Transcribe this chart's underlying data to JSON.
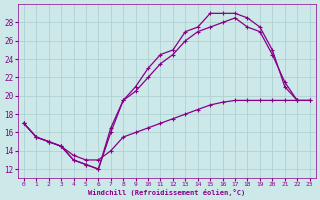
{
  "xlabel": "Windchill (Refroidissement éolien,°C)",
  "bg_color": "#cce8e8",
  "grid_color": "#aacece",
  "line_color": "#880088",
  "xlim": [
    -0.5,
    23.5
  ],
  "ylim": [
    11.0,
    30.0
  ],
  "yticks": [
    12,
    14,
    16,
    18,
    20,
    22,
    24,
    26,
    28
  ],
  "xticks": [
    0,
    1,
    2,
    3,
    4,
    5,
    6,
    7,
    8,
    9,
    10,
    11,
    12,
    13,
    14,
    15,
    16,
    17,
    18,
    19,
    20,
    21,
    22,
    23
  ],
  "curve1_x": [
    0,
    1,
    2,
    3,
    4,
    5,
    6,
    7,
    8,
    9,
    10,
    11,
    12,
    13,
    14,
    15,
    16,
    17,
    18,
    19,
    20,
    21,
    22
  ],
  "curve1_y": [
    17.0,
    15.5,
    15.0,
    14.5,
    13.0,
    12.5,
    12.0,
    16.0,
    19.5,
    21.0,
    23.0,
    24.5,
    25.0,
    27.0,
    27.5,
    29.0,
    29.0,
    29.0,
    28.5,
    27.5,
    25.0,
    21.0,
    19.5
  ],
  "curve2_x": [
    0,
    1,
    2,
    3,
    4,
    5,
    6,
    7,
    8,
    9,
    10,
    11,
    12,
    13,
    14,
    15,
    16,
    17,
    18,
    19,
    20,
    21,
    22,
    23
  ],
  "curve2_y": [
    17.0,
    15.5,
    15.0,
    14.5,
    13.0,
    12.5,
    12.0,
    16.5,
    19.5,
    20.5,
    22.0,
    23.5,
    24.5,
    26.0,
    27.0,
    27.5,
    28.0,
    28.5,
    27.5,
    27.0,
    24.5,
    21.5,
    19.5,
    19.5
  ],
  "curve3_x": [
    0,
    1,
    2,
    3,
    4,
    5,
    6,
    7,
    8,
    9,
    10,
    11,
    12,
    13,
    14,
    15,
    16,
    17,
    18,
    19,
    20,
    21,
    22,
    23
  ],
  "curve3_y": [
    17.0,
    15.5,
    15.0,
    14.5,
    13.5,
    13.0,
    13.0,
    14.0,
    15.5,
    16.0,
    16.5,
    17.0,
    17.5,
    18.0,
    18.5,
    19.0,
    19.3,
    19.5,
    19.5,
    19.5,
    19.5,
    19.5,
    19.5,
    19.5
  ]
}
